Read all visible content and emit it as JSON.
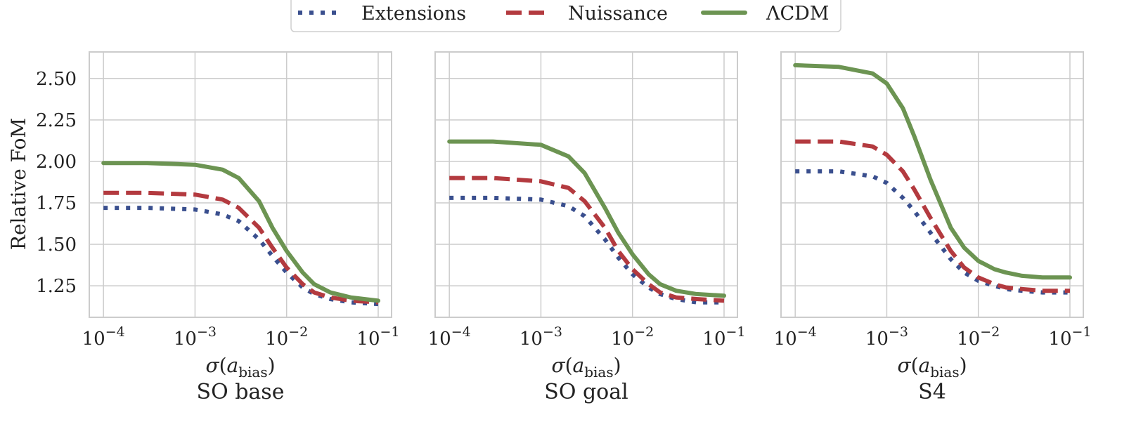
{
  "legend": {
    "entries": [
      {
        "label": "Extensions",
        "color": "#3a4f8e",
        "style": "dotted"
      },
      {
        "label": "Nuissance",
        "color": "#b33a3f",
        "style": "dashed"
      },
      {
        "label": "ΛCDM",
        "color": "#6c9452",
        "style": "solid"
      }
    ]
  },
  "chart_data": [
    {
      "type": "line",
      "title": "SO base",
      "xlabel": "σ(a_bias)",
      "ylabel": "Relative FoM",
      "xscale": "log",
      "xlim": [
        7e-05,
        0.14
      ],
      "ylim": [
        1.06,
        2.66
      ],
      "yticks": [
        "1.25",
        "1.50",
        "1.75",
        "2.00",
        "2.25",
        "2.50"
      ],
      "xticks": [
        "10^-4",
        "10^-3",
        "10^-2",
        "10^-1"
      ],
      "grid": true,
      "series": [
        {
          "name": "Extensions",
          "x": [
            0.0001,
            0.0003,
            0.001,
            0.002,
            0.003,
            0.005,
            0.007,
            0.01,
            0.015,
            0.02,
            0.03,
            0.05,
            0.1
          ],
          "values": [
            1.72,
            1.72,
            1.71,
            1.68,
            1.64,
            1.53,
            1.43,
            1.33,
            1.24,
            1.2,
            1.17,
            1.15,
            1.14
          ]
        },
        {
          "name": "Nuissance",
          "x": [
            0.0001,
            0.0003,
            0.001,
            0.002,
            0.003,
            0.005,
            0.007,
            0.01,
            0.015,
            0.02,
            0.03,
            0.05,
            0.1
          ],
          "values": [
            1.81,
            1.81,
            1.8,
            1.77,
            1.72,
            1.6,
            1.48,
            1.36,
            1.26,
            1.21,
            1.18,
            1.16,
            1.15
          ]
        },
        {
          "name": "ΛCDM",
          "x": [
            0.0001,
            0.0003,
            0.001,
            0.002,
            0.003,
            0.005,
            0.007,
            0.01,
            0.015,
            0.02,
            0.03,
            0.05,
            0.1
          ],
          "values": [
            1.99,
            1.99,
            1.98,
            1.95,
            1.9,
            1.76,
            1.6,
            1.46,
            1.33,
            1.26,
            1.21,
            1.18,
            1.16
          ]
        }
      ]
    },
    {
      "type": "line",
      "title": "SO goal",
      "xlabel": "σ(a_bias)",
      "ylabel": "",
      "xscale": "log",
      "xlim": [
        7e-05,
        0.14
      ],
      "ylim": [
        1.06,
        2.66
      ],
      "xticks": [
        "10^-4",
        "10^-3",
        "10^-2",
        "10^-1"
      ],
      "grid": true,
      "series": [
        {
          "name": "Extensions",
          "x": [
            0.0001,
            0.0003,
            0.001,
            0.002,
            0.003,
            0.005,
            0.007,
            0.01,
            0.015,
            0.02,
            0.03,
            0.05,
            0.1
          ],
          "values": [
            1.78,
            1.78,
            1.77,
            1.73,
            1.67,
            1.53,
            1.42,
            1.32,
            1.24,
            1.2,
            1.17,
            1.15,
            1.15
          ]
        },
        {
          "name": "Nuissance",
          "x": [
            0.0001,
            0.0003,
            0.001,
            0.002,
            0.003,
            0.005,
            0.007,
            0.01,
            0.015,
            0.02,
            0.03,
            0.05,
            0.1
          ],
          "values": [
            1.9,
            1.9,
            1.88,
            1.84,
            1.76,
            1.6,
            1.46,
            1.35,
            1.26,
            1.21,
            1.18,
            1.17,
            1.16
          ]
        },
        {
          "name": "ΛCDM",
          "x": [
            0.0001,
            0.0003,
            0.001,
            0.002,
            0.003,
            0.005,
            0.007,
            0.01,
            0.015,
            0.02,
            0.03,
            0.05,
            0.1
          ],
          "values": [
            2.12,
            2.12,
            2.1,
            2.03,
            1.93,
            1.72,
            1.57,
            1.44,
            1.32,
            1.26,
            1.22,
            1.2,
            1.19
          ]
        }
      ]
    },
    {
      "type": "line",
      "title": "S4",
      "xlabel": "σ(a_bias)",
      "ylabel": "",
      "xscale": "log",
      "xlim": [
        7e-05,
        0.14
      ],
      "ylim": [
        1.06,
        2.66
      ],
      "xticks": [
        "10^-4",
        "10^-3",
        "10^-2",
        "10^-1"
      ],
      "grid": true,
      "series": [
        {
          "name": "Extensions",
          "x": [
            0.0001,
            0.0003,
            0.0007,
            0.001,
            0.0015,
            0.002,
            0.003,
            0.005,
            0.007,
            0.01,
            0.015,
            0.02,
            0.03,
            0.05,
            0.1
          ],
          "values": [
            1.94,
            1.94,
            1.91,
            1.87,
            1.78,
            1.7,
            1.57,
            1.41,
            1.33,
            1.28,
            1.25,
            1.23,
            1.22,
            1.21,
            1.21
          ]
        },
        {
          "name": "Nuissance",
          "x": [
            0.0001,
            0.0003,
            0.0007,
            0.001,
            0.0015,
            0.002,
            0.003,
            0.005,
            0.007,
            0.01,
            0.015,
            0.02,
            0.03,
            0.05,
            0.1
          ],
          "values": [
            2.12,
            2.12,
            2.09,
            2.04,
            1.94,
            1.83,
            1.66,
            1.46,
            1.36,
            1.3,
            1.26,
            1.24,
            1.23,
            1.22,
            1.22
          ]
        },
        {
          "name": "ΛCDM",
          "x": [
            0.0001,
            0.0003,
            0.0007,
            0.001,
            0.0015,
            0.002,
            0.003,
            0.005,
            0.007,
            0.01,
            0.015,
            0.02,
            0.03,
            0.05,
            0.1
          ],
          "values": [
            2.58,
            2.57,
            2.53,
            2.47,
            2.32,
            2.15,
            1.89,
            1.6,
            1.48,
            1.4,
            1.35,
            1.33,
            1.31,
            1.3,
            1.3
          ]
        }
      ]
    }
  ]
}
